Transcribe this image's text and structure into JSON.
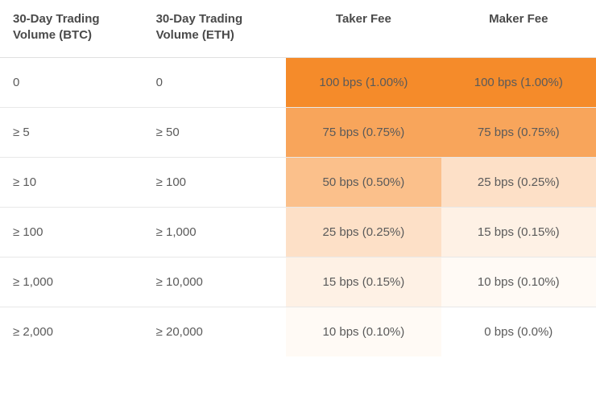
{
  "table": {
    "columns": [
      {
        "key": "btc",
        "label": "30-Day Trading Volume (BTC)",
        "class": "col-btc",
        "fee": false
      },
      {
        "key": "eth",
        "label": "30-Day Trading Volume (ETH)",
        "class": "col-eth",
        "fee": false
      },
      {
        "key": "taker",
        "label": "Taker Fee",
        "class": "col-taker",
        "fee": true
      },
      {
        "key": "maker",
        "label": "Maker Fee",
        "class": "col-maker",
        "fee": true
      }
    ],
    "rows": [
      {
        "btc": "0",
        "eth": "0",
        "taker": "100 bps (1.00%)",
        "maker": "100 bps (1.00%)",
        "taker_bg": "#f58b2a",
        "maker_bg": "#f58b2a"
      },
      {
        "btc": "≥ 5",
        "eth": "≥ 50",
        "taker": "75 bps (0.75%)",
        "maker": "75 bps (0.75%)",
        "taker_bg": "#f8a55b",
        "maker_bg": "#f8a55b"
      },
      {
        "btc": "≥ 10",
        "eth": "≥ 100",
        "taker": "50 bps (0.50%)",
        "maker": "25 bps (0.25%)",
        "taker_bg": "#fbc08b",
        "maker_bg": "#fde0c7"
      },
      {
        "btc": "≥ 100",
        "eth": "≥ 1,000",
        "taker": "25 bps (0.25%)",
        "maker": "15 bps (0.15%)",
        "taker_bg": "#fde0c7",
        "maker_bg": "#fef1e5"
      },
      {
        "btc": "≥ 1,000",
        "eth": "≥ 10,000",
        "taker": "15 bps (0.15%)",
        "maker": "10 bps (0.10%)",
        "taker_bg": "#fef1e5",
        "maker_bg": "#fffaf5"
      },
      {
        "btc": "≥ 2,000",
        "eth": "≥ 20,000",
        "taker": "10 bps (0.10%)",
        "maker": "0 bps (0.0%)",
        "taker_bg": "#fffaf5",
        "maker_bg": "#ffffff"
      }
    ],
    "header_text_color": "#4a4a4a",
    "body_text_color": "#5a5a5a",
    "row_border_color": "#e8e8e8",
    "background_color": "#ffffff"
  }
}
